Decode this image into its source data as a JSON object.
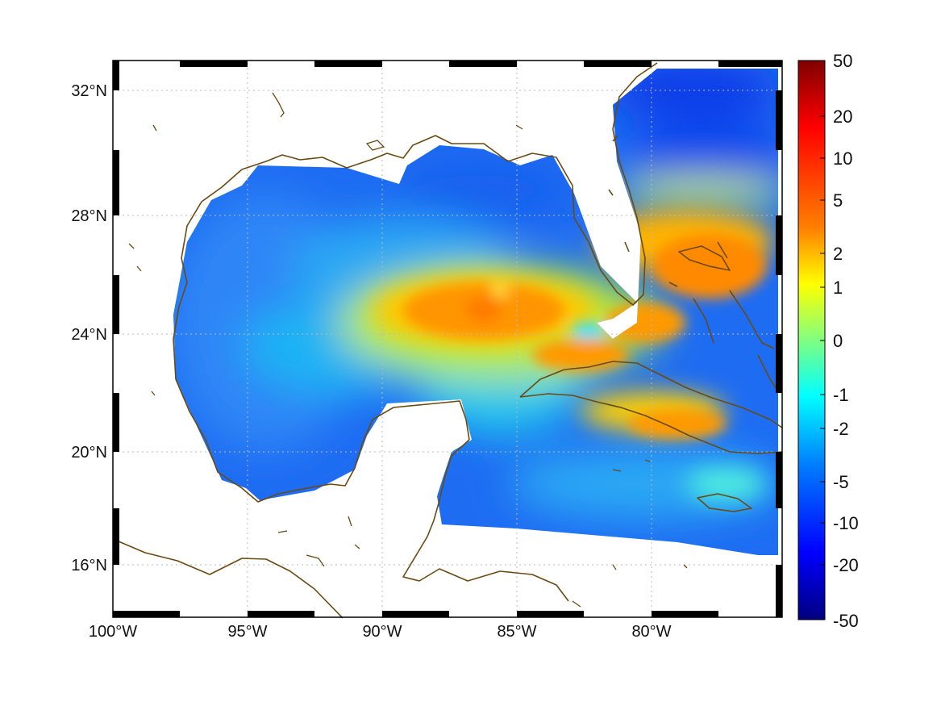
{
  "map": {
    "lat_ticks": [
      "32°N",
      "28°N",
      "24°N",
      "20°N",
      "16°N"
    ],
    "lon_ticks": [
      "100°W",
      "95°W",
      "90°W",
      "85°W",
      "80°W"
    ],
    "coastline_color": "#6b4a12",
    "land_color": "#ffffff",
    "grid": "dotted"
  },
  "colorbar": {
    "labels": [
      "50",
      "20",
      "10",
      "5",
      "2",
      "1",
      "0",
      "-1",
      "-2",
      "-5",
      "-10",
      "-20",
      "-50"
    ],
    "colormap": "jet",
    "colors": [
      "#7f0000",
      "#ff0000",
      "#ff8000",
      "#ffff00",
      "#80ff80",
      "#00ffff",
      "#0080ff",
      "#0000ff",
      "#00007f"
    ]
  }
}
